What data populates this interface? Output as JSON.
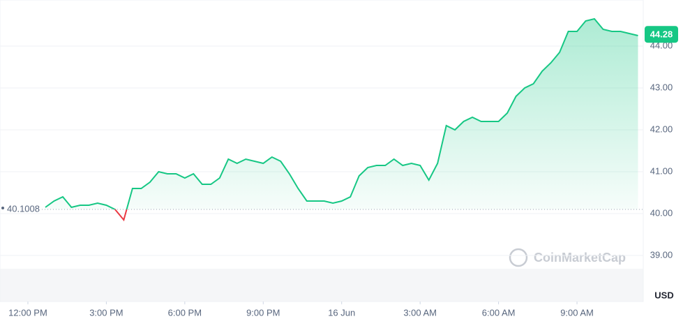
{
  "chart_data": {
    "type": "line",
    "baseline": 40.1008,
    "current_price": 44.28,
    "y_axis_label": "USD",
    "watermark": "CoinMarketCap",
    "up_color": "#16c784",
    "down_color": "#ea3943",
    "grid": true,
    "xlim": [
      -5.2,
      68.6
    ],
    "ylim": [
      37.9,
      45.1
    ],
    "yticks": [
      {
        "value": 39,
        "label": "39.00"
      },
      {
        "value": 40,
        "label": "40.00"
      },
      {
        "value": 41,
        "label": "41.00"
      },
      {
        "value": 42,
        "label": "42.00"
      },
      {
        "value": 43,
        "label": "43.00"
      },
      {
        "value": 44,
        "label": "44.00"
      }
    ],
    "xticks": [
      {
        "value": -2,
        "label": "12:00 PM"
      },
      {
        "value": 7,
        "label": "3:00 PM"
      },
      {
        "value": 16,
        "label": "6:00 PM"
      },
      {
        "value": 25,
        "label": "9:00 PM"
      },
      {
        "value": 34,
        "label": "16 Jun"
      },
      {
        "value": 43,
        "label": "3:00 AM"
      },
      {
        "value": 52,
        "label": "6:00 AM"
      },
      {
        "value": 61,
        "label": "9:00 AM"
      }
    ],
    "series": [
      {
        "values": [
          40.15,
          40.3,
          40.4,
          40.15,
          40.2,
          40.2,
          40.25,
          40.2,
          40.1,
          39.85,
          40.6,
          40.6,
          40.75,
          41.0,
          40.95,
          40.95,
          40.85,
          40.95,
          40.7,
          40.7,
          40.85,
          41.3,
          41.2,
          41.3,
          41.25,
          41.2,
          41.35,
          41.25,
          40.95,
          40.6,
          40.3,
          40.3,
          40.3,
          40.25,
          40.3,
          40.4,
          40.9,
          41.1,
          41.15,
          41.15,
          41.3,
          41.15,
          41.2,
          41.15,
          40.8,
          41.2,
          42.1,
          42.0,
          42.2,
          42.3,
          42.2,
          42.2,
          42.2,
          42.4,
          42.8,
          43.0,
          43.1,
          43.4,
          43.6,
          43.85,
          44.35,
          44.35,
          44.6,
          44.65,
          44.4,
          44.35,
          44.35,
          44.3,
          44.25
        ]
      }
    ]
  }
}
